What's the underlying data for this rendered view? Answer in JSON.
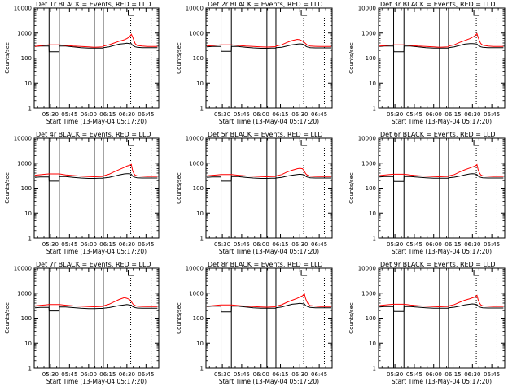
{
  "page": {
    "time_axis_title": "Start Time (13-May-04 05:17:20)",
    "y_axis_title": "Counts/sec"
  },
  "shared_axes": {
    "x_ticks": [
      "05:30",
      "05:45",
      "06:00",
      "06:15",
      "06:30",
      "06:45"
    ],
    "x_tick_minutes": [
      30,
      45,
      60,
      75,
      90,
      105
    ],
    "xlim_minutes": [
      17.33,
      115
    ],
    "y_ticks": [
      "1",
      "10",
      "100",
      "1000",
      "10000"
    ],
    "y_tick_values": [
      1,
      10,
      100,
      1000,
      10000
    ],
    "ylim": [
      1,
      10000
    ],
    "y_scale": "log",
    "solid_markers_minutes": [
      29,
      37,
      64.5,
      71.5
    ],
    "dotted_markers_minutes": [
      93,
      109
    ],
    "series_colors": {
      "events": "#000000",
      "lld": "#ff0000"
    }
  },
  "chart_data": [
    {
      "type": "line",
      "title": "Det 1r BLACK = Events, RED = LLD",
      "x": [
        18,
        22,
        26,
        28.9,
        29.1,
        33,
        36.9,
        37.1,
        42,
        48,
        54,
        60,
        64.4,
        64.6,
        68,
        71.4,
        71.6,
        76,
        80,
        84,
        88,
        90,
        92,
        93.5,
        94.5,
        95.5,
        96.5,
        98,
        102,
        106,
        110,
        114
      ],
      "series": [
        {
          "values": [
            290,
            300,
            300,
            300,
            180,
            180,
            180,
            300,
            300,
            280,
            260,
            250,
            250,
            250,
            250,
            250,
            260,
            280,
            320,
            360,
            380,
            390,
            380,
            380,
            320,
            300,
            280,
            270,
            260,
            260,
            260,
            260
          ]
        },
        {
          "values": [
            290,
            310,
            330,
            340,
            340,
            340,
            340,
            340,
            320,
            300,
            290,
            280,
            270,
            270,
            275,
            280,
            300,
            340,
            400,
            470,
            540,
            600,
            700,
            900,
            700,
            500,
            380,
            320,
            300,
            290,
            290,
            290
          ]
        }
      ]
    },
    {
      "type": "line",
      "title": "Det 2r BLACK = Events, RED = LLD",
      "x": [
        18,
        22,
        26,
        28.9,
        29.1,
        33,
        36.9,
        37.1,
        42,
        48,
        54,
        60,
        64.4,
        64.6,
        68,
        71.4,
        71.6,
        76,
        80,
        84,
        88,
        90,
        92,
        93.5,
        94.5,
        95.5,
        96.5,
        98,
        102,
        106,
        110,
        114
      ],
      "series": [
        {
          "values": [
            280,
            290,
            290,
            290,
            185,
            185,
            185,
            290,
            290,
            270,
            255,
            245,
            245,
            245,
            250,
            250,
            260,
            270,
            300,
            340,
            360,
            370,
            360,
            340,
            300,
            280,
            270,
            260,
            255,
            255,
            255,
            255
          ]
        },
        {
          "values": [
            300,
            315,
            330,
            340,
            340,
            340,
            340,
            340,
            320,
            300,
            290,
            280,
            275,
            275,
            280,
            285,
            300,
            340,
            420,
            500,
            560,
            540,
            480,
            420,
            380,
            340,
            320,
            300,
            295,
            290,
            290,
            290
          ]
        }
      ]
    },
    {
      "type": "line",
      "title": "Det 3r BLACK = Events, RED = LLD",
      "x": [
        18,
        22,
        26,
        28.9,
        29.1,
        33,
        36.9,
        37.1,
        42,
        48,
        54,
        60,
        64.4,
        64.6,
        68,
        71.4,
        71.6,
        76,
        80,
        84,
        88,
        90,
        92,
        93.5,
        94.5,
        95.5,
        96.5,
        98,
        102,
        106,
        110,
        114
      ],
      "series": [
        {
          "values": [
            290,
            300,
            300,
            300,
            180,
            180,
            180,
            300,
            300,
            280,
            260,
            250,
            250,
            250,
            250,
            250,
            260,
            280,
            320,
            360,
            380,
            380,
            370,
            360,
            320,
            300,
            280,
            270,
            260,
            260,
            260,
            260
          ]
        },
        {
          "values": [
            300,
            315,
            330,
            340,
            340,
            340,
            340,
            340,
            320,
            300,
            290,
            280,
            270,
            270,
            275,
            280,
            300,
            340,
            420,
            500,
            600,
            680,
            780,
            950,
            650,
            480,
            380,
            330,
            300,
            290,
            290,
            290
          ]
        }
      ]
    },
    {
      "type": "line",
      "title": "Det 4r BLACK = Events, RED = LLD",
      "x": [
        18,
        22,
        26,
        28.9,
        29.1,
        33,
        36.9,
        37.1,
        42,
        48,
        54,
        60,
        64.4,
        64.6,
        68,
        71.4,
        71.6,
        76,
        80,
        84,
        88,
        90,
        92,
        93.5,
        94.5,
        95.5,
        96.5,
        98,
        102,
        106,
        110,
        114
      ],
      "series": [
        {
          "values": [
            270,
            280,
            280,
            280,
            190,
            190,
            190,
            290,
            290,
            270,
            255,
            245,
            245,
            245,
            250,
            250,
            255,
            270,
            300,
            340,
            370,
            380,
            380,
            360,
            300,
            280,
            270,
            260,
            255,
            255,
            255,
            255
          ]
        },
        {
          "values": [
            330,
            345,
            360,
            370,
            370,
            370,
            370,
            370,
            340,
            320,
            300,
            290,
            285,
            285,
            290,
            295,
            310,
            360,
            450,
            550,
            680,
            760,
            820,
            900,
            500,
            380,
            330,
            310,
            300,
            295,
            295,
            295
          ]
        }
      ]
    },
    {
      "type": "line",
      "title": "Det 5r BLACK = Events, RED = LLD",
      "x": [
        18,
        22,
        26,
        28.9,
        29.1,
        33,
        36.9,
        37.1,
        42,
        48,
        54,
        60,
        64.4,
        64.6,
        68,
        71.4,
        71.6,
        76,
        80,
        84,
        88,
        90,
        92,
        93.5,
        94.5,
        95.5,
        96.5,
        98,
        102,
        106,
        110,
        114
      ],
      "series": [
        {
          "values": [
            270,
            280,
            280,
            280,
            190,
            190,
            190,
            290,
            290,
            270,
            255,
            245,
            245,
            245,
            250,
            250,
            255,
            270,
            300,
            330,
            350,
            360,
            350,
            340,
            300,
            280,
            270,
            260,
            255,
            255,
            255,
            255
          ]
        },
        {
          "values": [
            310,
            325,
            340,
            350,
            350,
            350,
            350,
            350,
            330,
            310,
            300,
            290,
            285,
            285,
            290,
            295,
            310,
            350,
            440,
            520,
            600,
            620,
            600,
            480,
            380,
            340,
            320,
            300,
            295,
            290,
            290,
            290
          ]
        }
      ]
    },
    {
      "type": "line",
      "title": "Det 6r BLACK = Events, RED = LLD",
      "x": [
        18,
        22,
        26,
        28.9,
        29.1,
        33,
        36.9,
        37.1,
        42,
        48,
        54,
        60,
        64.4,
        64.6,
        68,
        71.4,
        71.6,
        76,
        80,
        84,
        88,
        90,
        92,
        93.5,
        94.5,
        95.5,
        96.5,
        98,
        102,
        106,
        110,
        114
      ],
      "series": [
        {
          "values": [
            280,
            290,
            290,
            290,
            185,
            185,
            185,
            290,
            290,
            275,
            260,
            250,
            250,
            250,
            250,
            250,
            260,
            275,
            300,
            340,
            370,
            380,
            370,
            350,
            300,
            280,
            270,
            260,
            255,
            255,
            255,
            255
          ]
        },
        {
          "values": [
            320,
            335,
            350,
            360,
            360,
            360,
            360,
            360,
            335,
            315,
            300,
            290,
            285,
            285,
            290,
            295,
            310,
            350,
            440,
            540,
            640,
            700,
            760,
            880,
            520,
            400,
            340,
            310,
            300,
            295,
            295,
            295
          ]
        }
      ]
    },
    {
      "type": "line",
      "title": "Det 7r BLACK = Events, RED = LLD",
      "x": [
        18,
        22,
        26,
        28.9,
        29.1,
        33,
        36.9,
        37.1,
        42,
        48,
        54,
        60,
        64.4,
        64.6,
        68,
        71.4,
        71.6,
        76,
        80,
        84,
        88,
        90,
        92,
        93.5,
        94.5,
        95.5,
        96.5,
        98,
        102,
        106,
        110,
        114
      ],
      "series": [
        {
          "values": [
            260,
            270,
            270,
            270,
            195,
            195,
            195,
            280,
            280,
            265,
            250,
            240,
            240,
            240,
            245,
            245,
            250,
            265,
            290,
            320,
            340,
            350,
            340,
            330,
            290,
            275,
            265,
            255,
            250,
            250,
            250,
            250
          ]
        },
        {
          "values": [
            310,
            325,
            340,
            350,
            350,
            350,
            350,
            350,
            330,
            310,
            300,
            290,
            285,
            285,
            290,
            295,
            310,
            360,
            450,
            560,
            660,
            620,
            560,
            460,
            380,
            340,
            320,
            300,
            295,
            290,
            290,
            290
          ]
        }
      ]
    },
    {
      "type": "line",
      "title": "Det 8r BLACK = Events, RED = LLD",
      "x": [
        18,
        22,
        26,
        28.9,
        29.1,
        33,
        36.9,
        37.1,
        42,
        48,
        54,
        60,
        64.4,
        64.6,
        68,
        71.4,
        71.6,
        76,
        80,
        84,
        88,
        90,
        92,
        93.5,
        94.5,
        95.5,
        96.5,
        98,
        102,
        106,
        110,
        114
      ],
      "series": [
        {
          "values": [
            290,
            300,
            300,
            300,
            180,
            180,
            180,
            300,
            300,
            280,
            260,
            250,
            250,
            250,
            250,
            250,
            260,
            280,
            320,
            360,
            380,
            390,
            380,
            370,
            320,
            300,
            280,
            270,
            260,
            260,
            260,
            260
          ]
        },
        {
          "values": [
            300,
            315,
            330,
            340,
            340,
            340,
            340,
            340,
            320,
            300,
            290,
            280,
            275,
            275,
            280,
            285,
            300,
            345,
            430,
            520,
            620,
            700,
            780,
            950,
            600,
            450,
            370,
            320,
            300,
            290,
            290,
            290
          ]
        }
      ]
    },
    {
      "type": "line",
      "title": "Det 9r BLACK = Events, RED = LLD",
      "x": [
        18,
        22,
        26,
        28.9,
        29.1,
        33,
        36.9,
        37.1,
        42,
        48,
        54,
        60,
        64.4,
        64.6,
        68,
        71.4,
        71.6,
        76,
        80,
        84,
        88,
        90,
        92,
        93.5,
        94.5,
        95.5,
        96.5,
        98,
        102,
        106,
        110,
        114
      ],
      "series": [
        {
          "values": [
            280,
            290,
            290,
            290,
            185,
            185,
            185,
            290,
            290,
            275,
            260,
            250,
            250,
            250,
            250,
            250,
            260,
            275,
            300,
            340,
            360,
            370,
            360,
            350,
            300,
            280,
            270,
            260,
            255,
            255,
            255,
            255
          ]
        },
        {
          "values": [
            320,
            335,
            350,
            360,
            360,
            360,
            360,
            360,
            335,
            315,
            300,
            290,
            285,
            285,
            290,
            295,
            310,
            350,
            430,
            520,
            600,
            650,
            700,
            820,
            520,
            400,
            340,
            310,
            300,
            295,
            295,
            295
          ]
        }
      ]
    }
  ]
}
